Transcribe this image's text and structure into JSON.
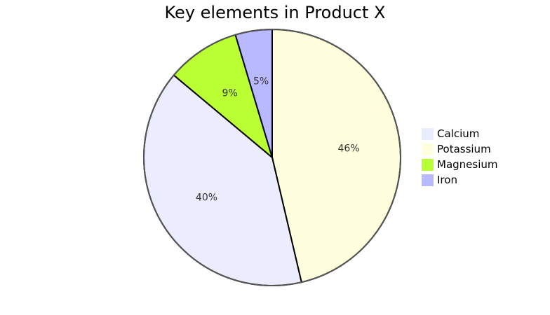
{
  "chart_data": {
    "type": "pie",
    "title": "Key elements in Product X",
    "categories": [
      "Calcium",
      "Potassium",
      "Magnesium",
      "Iron"
    ],
    "values": [
      42.96,
      50.05,
      10.01,
      5.0
    ],
    "percent_labels": [
      "40%",
      "46%",
      "9%",
      "5%"
    ],
    "colors": [
      "#ECECFF",
      "#FFFFDE",
      "#B9FF33",
      "#B9B9FF"
    ],
    "legend_position": "right"
  }
}
